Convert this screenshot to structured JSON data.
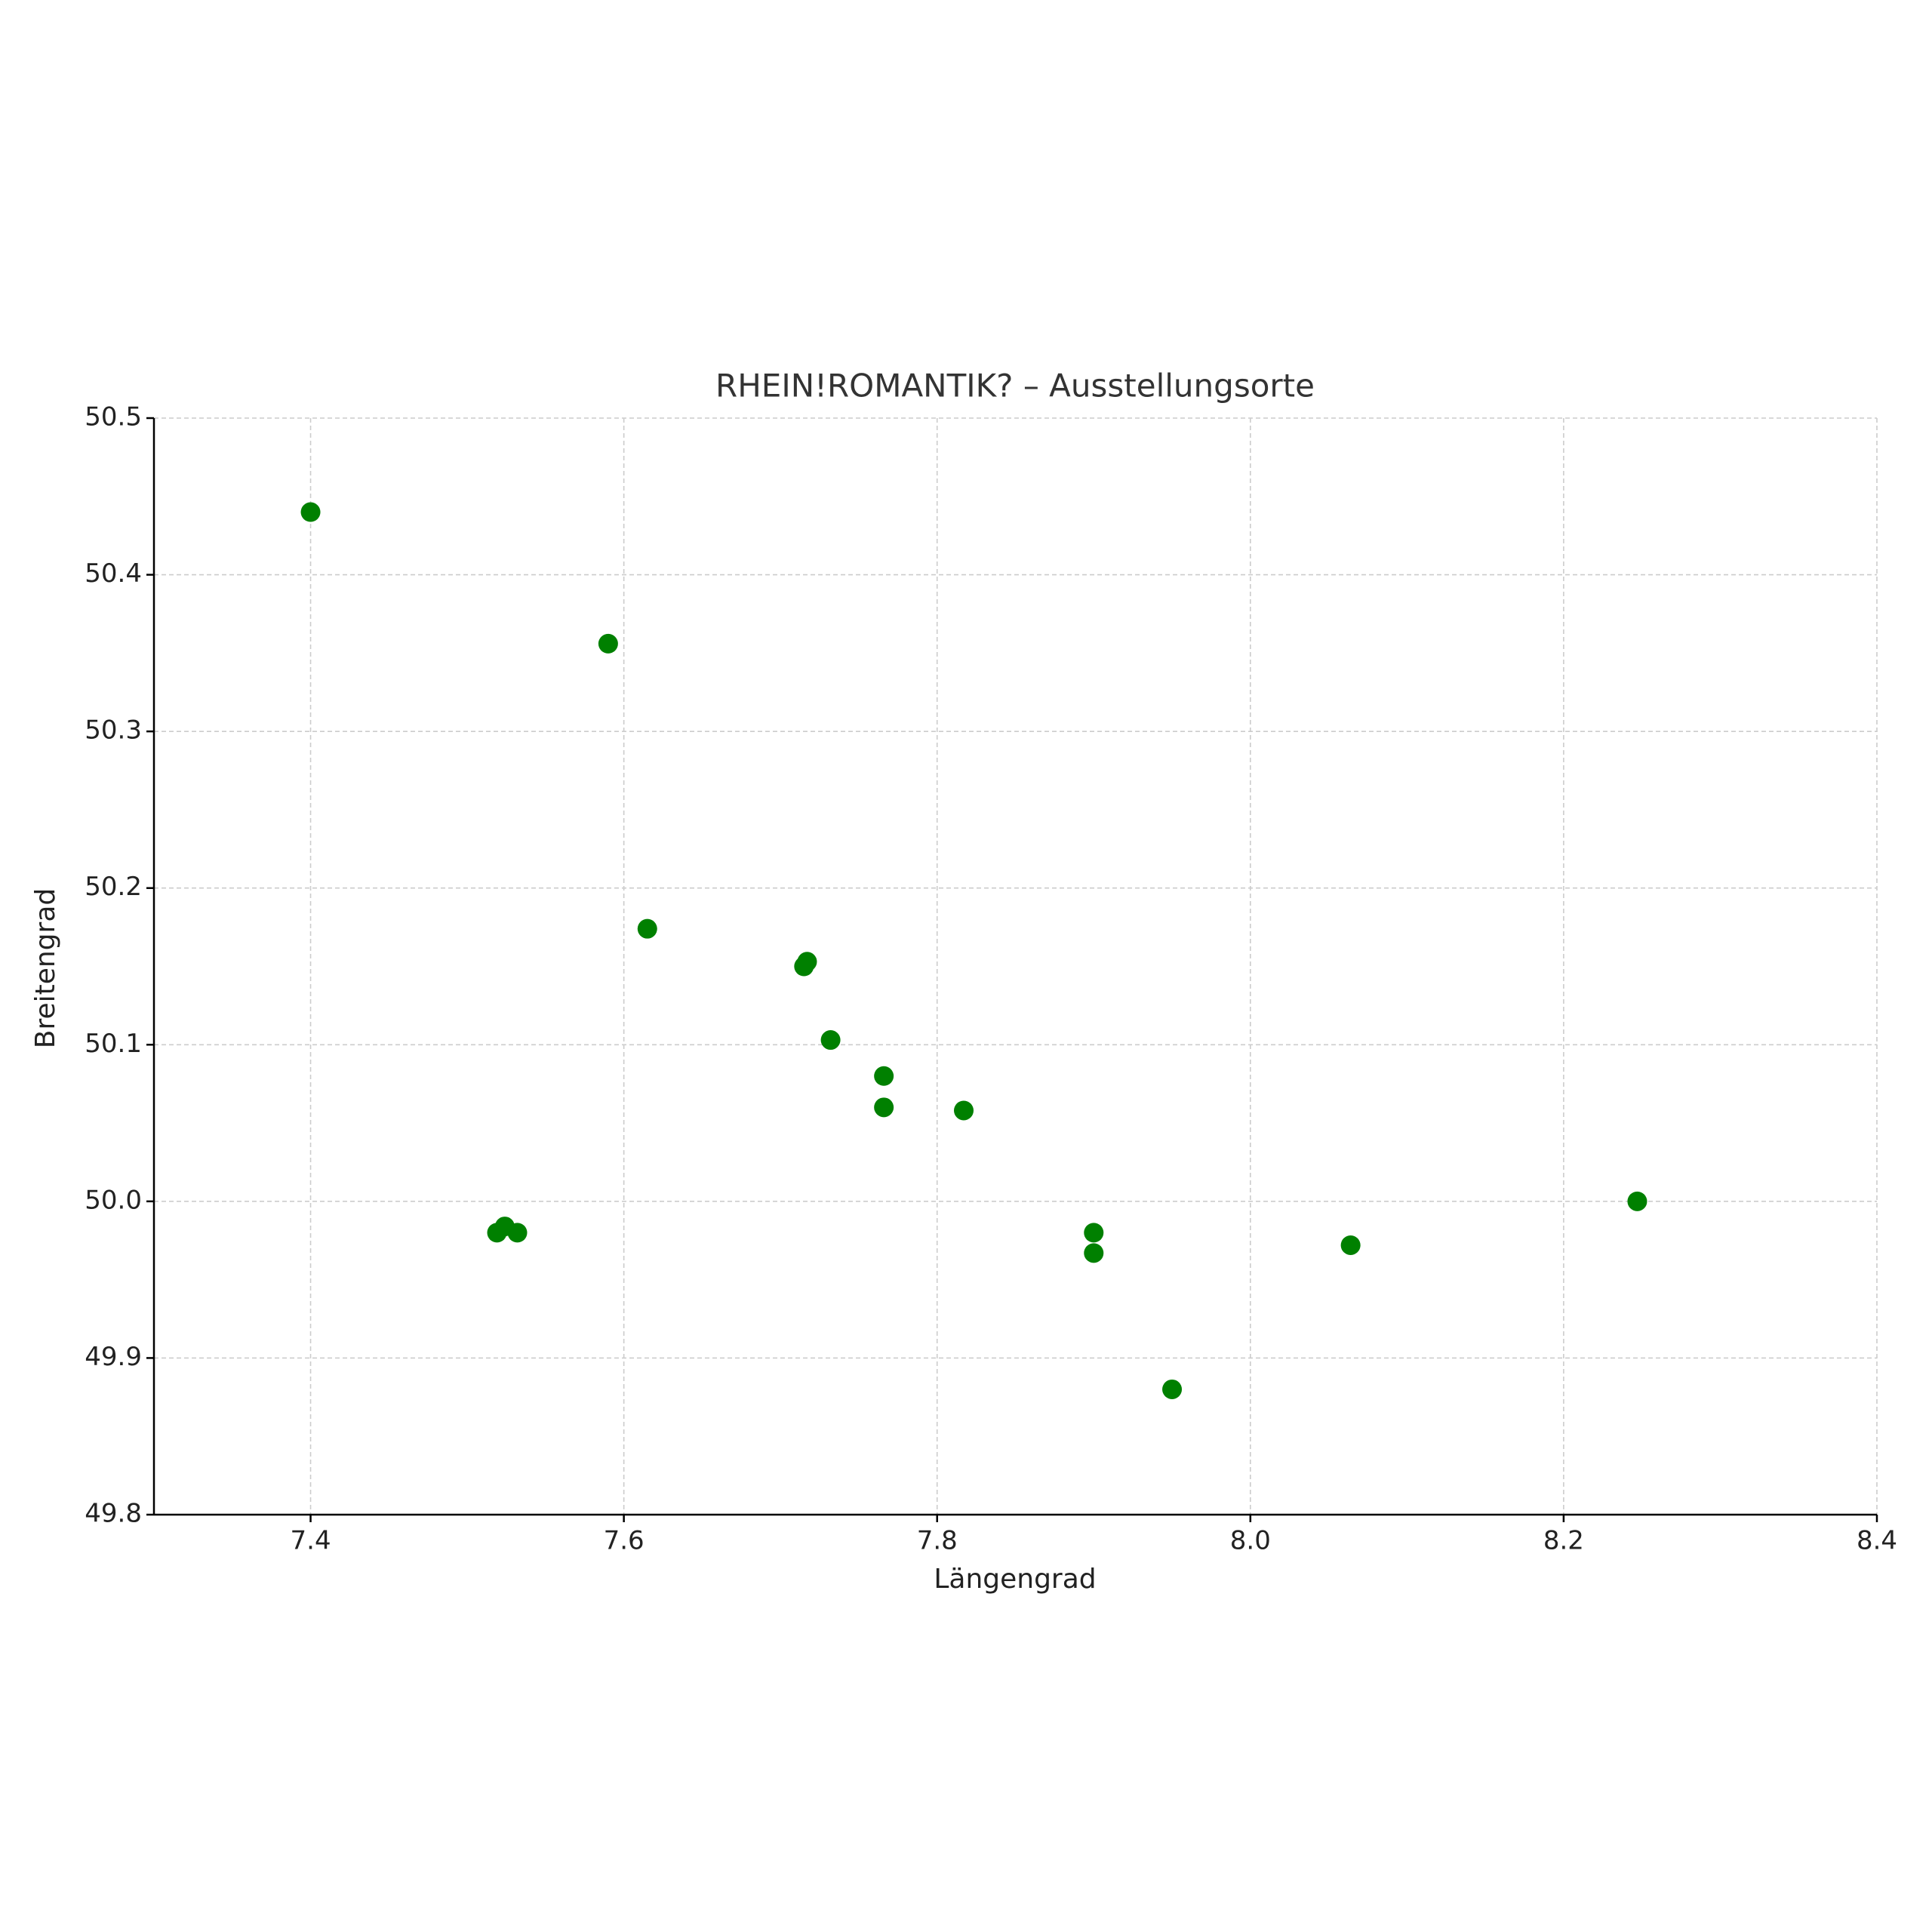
{
  "chart_data": {
    "type": "scatter",
    "title": "RHEIN!ROMANTIK? – Ausstellungsorte",
    "x_label": "Längengrad",
    "y_label": "Breitengrad",
    "series": [
      {
        "color": "#008000",
        "x": [
          7.4,
          7.59,
          7.615,
          7.717,
          7.715,
          7.732,
          7.766,
          7.766,
          7.817,
          8.247,
          7.524,
          7.519,
          7.532,
          7.9,
          7.9,
          8.064,
          7.95
        ],
        "values": [
          50.44,
          50.356,
          50.174,
          50.153,
          50.15,
          50.103,
          50.08,
          50.06,
          50.058,
          50.0,
          49.984,
          49.98,
          49.98,
          49.98,
          49.967,
          49.972,
          49.88
        ]
      }
    ],
    "xlim": [
      7.3,
      8.4
    ],
    "xticks": [
      7.4,
      7.6,
      7.8,
      {
        "value": 8,
        "label": "8.0"
      },
      8.2,
      8.4
    ],
    "ylim": [
      49.8,
      50.5
    ],
    "yticks": [
      49.8,
      49.9,
      {
        "value": 50,
        "label": "50.0"
      },
      50.1,
      50.2,
      50.3,
      50.4,
      50.5
    ],
    "grid": true
  }
}
